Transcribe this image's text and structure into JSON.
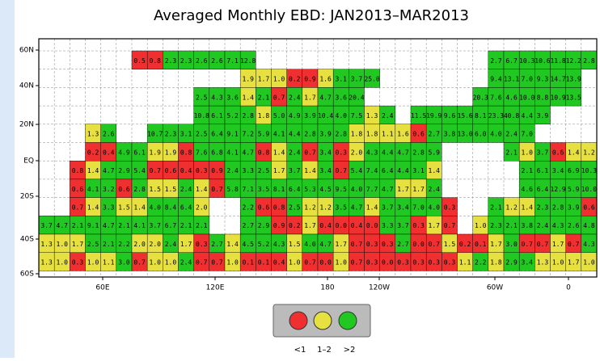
{
  "title": "Averaged Monthly EBD: JAN2013–MAR2013",
  "lat_labels": [
    "60N",
    "40N",
    "20N",
    "EQ",
    "20S",
    "40S",
    "60S"
  ],
  "lon_labels": [
    "60E",
    "120E",
    "180",
    "120W",
    "60W",
    "0"
  ],
  "legend": [
    {
      "label": "<1",
      "color": "#f03030"
    },
    {
      "label": "1–2",
      "color": "#e6e040"
    },
    {
      "label": ">2",
      "color": "#22c822"
    }
  ],
  "grid": {
    "rows": [
      {
        "colors": "......00222222...............2222222",
        "values": [
          null,
          null,
          null,
          null,
          null,
          null,
          "0.5",
          "0.8",
          "2.3",
          "2.3",
          "2.6",
          "2.6",
          "7.1",
          "12.8",
          null,
          null,
          null,
          null,
          null,
          null,
          null,
          null,
          null,
          null,
          null,
          null,
          null,
          null,
          null,
          "2.7",
          "6.7",
          "10.3",
          "10.6",
          "11.8",
          "12.2",
          "2.8"
        ]
      },
      {
        "colors": ".............111001222.......222222.",
        "values": [
          null,
          null,
          null,
          null,
          null,
          null,
          null,
          null,
          null,
          null,
          null,
          null,
          null,
          "1.9",
          "1.7",
          "1.0",
          "0.2",
          "0.9",
          "1.6",
          "3.1",
          "3.7",
          "25.0",
          null,
          null,
          null,
          null,
          null,
          null,
          null,
          "9.4",
          "13.1",
          "7.0",
          "9.3",
          "14.7",
          "13.9",
          null
        ]
      },
      {
        "colors": "..........22212021222.......2222222.",
        "values": [
          null,
          null,
          null,
          null,
          null,
          null,
          null,
          null,
          null,
          null,
          "2.5",
          "4.3",
          "3.6",
          "1.4",
          "2.1",
          "0.7",
          "2.4",
          "1.7",
          "4.7",
          "3.6",
          "20.4",
          null,
          null,
          null,
          null,
          null,
          null,
          null,
          "20.3",
          "7.6",
          "4.6",
          "10.0",
          "8.8",
          "10.9",
          "13.5",
          null
        ]
      },
      {
        "colors": "..........2222122222212.222222222...",
        "values": [
          null,
          null,
          null,
          null,
          null,
          null,
          null,
          null,
          null,
          null,
          "10.8",
          "6.1",
          "5.2",
          "2.8",
          "1.8",
          "5.0",
          "4.9",
          "3.9",
          "10.4",
          "4.0",
          "7.5",
          "1.3",
          "2.4",
          null,
          "11.5",
          "19.9",
          "9.6",
          "15.6",
          "8.1",
          "23.3",
          "40.8",
          "4.4",
          "3.9",
          null,
          null,
          null
        ]
      },
      {
        "colors": "...12..2222222222222111102222222....",
        "values": [
          null,
          null,
          null,
          "1.3",
          "2.6",
          null,
          null,
          "10.7",
          "2.3",
          "3.1",
          "2.5",
          "6.4",
          "9.1",
          "7.2",
          "5.9",
          "4.1",
          "4.4",
          "2.8",
          "3.9",
          "2.8",
          "1.8",
          "1.8",
          "1.1",
          "1.6",
          "0.6",
          "2.7",
          "3.8",
          "13.0",
          "6.0",
          "4.0",
          "2.4",
          "7.0",
          null,
          null,
          null,
          null
        ]
      },
      {
        "colors": "...00221102222012020122222....212011",
        "values": [
          null,
          null,
          null,
          "0.2",
          "0.4",
          "4.9",
          "6.1",
          "1.9",
          "1.9",
          "0.8",
          "7.6",
          "6.8",
          "4.1",
          "4.7",
          "0.8",
          "1.4",
          "2.4",
          "0.7",
          "3.4",
          "0.3",
          "2.0",
          "4.3",
          "4.4",
          "4.7",
          "2.8",
          "5.9",
          null,
          null,
          null,
          null,
          "2.1",
          "1.0",
          "3.7",
          "0.6",
          "1.4",
          "1.2"
        ]
      },
      {
        "colors": "..012220000022212120222221.....22222",
        "values": [
          null,
          null,
          "0.8",
          "1.4",
          "4.7",
          "2.9",
          "5.4",
          "0.7",
          "0.6",
          "0.4",
          "0.3",
          "0.9",
          "2.4",
          "3.3",
          "2.5",
          "1.7",
          "3.7",
          "1.4",
          "3.4",
          "0.7",
          "5.4",
          "7.4",
          "6.4",
          "4.4",
          "3.1",
          "1.4",
          null,
          null,
          null,
          null,
          null,
          "2.1",
          "6.1",
          "3.4",
          "6.9",
          "10.3"
        ]
      },
      {
        "colors": "..022021121022222222222112.....22222",
        "values": [
          null,
          null,
          "0.6",
          "4.1",
          "3.2",
          "0.6",
          "2.8",
          "1.5",
          "1.5",
          "2.4",
          "1.4",
          "0.7",
          "5.8",
          "7.1",
          "3.5",
          "8.1",
          "6.4",
          "5.3",
          "4.5",
          "9.5",
          "4.0",
          "7.7",
          "4.7",
          "1.7",
          "1.7",
          "2.4",
          null,
          null,
          null,
          null,
          null,
          "4.6",
          "6.4",
          "12.9",
          "5.9",
          "10.0"
        ]
      },
      {
        "colors": "..012112221..20021122122220..2112220",
        "values": [
          null,
          null,
          "0.7",
          "1.4",
          "3.3",
          "1.5",
          "1.4",
          "4.0",
          "8.4",
          "6.4",
          "2.0",
          null,
          null,
          "2.2",
          "0.6",
          "0.8",
          "2.5",
          "1.2",
          "1.2",
          "3.5",
          "4.7",
          "1.4",
          "3.7",
          "3.4",
          "7.0",
          "4.0",
          "0.3",
          null,
          null,
          "2.1",
          "1.2",
          "1.4",
          "2.3",
          "2.8",
          "3.9",
          "0.6"
        ]
      },
      {
        "colors": "22222222222..22001000022010.12222222",
        "values": [
          "3.7",
          "4.7",
          "2.1",
          "9.1",
          "4.7",
          "2.1",
          "4.1",
          "3.7",
          "6.7",
          "2.1",
          "2.1",
          null,
          null,
          "2.7",
          "2.9",
          "0.9",
          "0.2",
          "1.7",
          "0.4",
          "0.0",
          "0.4",
          "0.0",
          "3.3",
          "3.7",
          "0.3",
          "1.7",
          "0.7",
          null,
          "1.0",
          "2.3",
          "2.1",
          "3.8",
          "2.4",
          "4.3",
          "2.6",
          "4.8"
        ]
      },
      {
        "colors": "111222112102122212210002001001200102",
        "values": [
          "1.3",
          "1.0",
          "1.7",
          "2.5",
          "2.1",
          "2.2",
          "2.0",
          "2.0",
          "2.4",
          "1.7",
          "0.3",
          "2.7",
          "1.4",
          "4.5",
          "5.2",
          "4.3",
          "1.5",
          "4.0",
          "4.7",
          "1.7",
          "0.7",
          "0.3",
          "0.3",
          "2.7",
          "0.0",
          "0.7",
          "1.5",
          "0.2",
          "0.1",
          "1.7",
          "3.0",
          "0.7",
          "0.7",
          "1.7",
          "0.7",
          "4.3"
        ]
      },
      {
        "colors": "110112011200100010010000000121221111",
        "values": [
          "1.3",
          "1.0",
          "0.3",
          "1.0",
          "1.1",
          "3.0",
          "0.7",
          "1.0",
          "1.0",
          "2.4",
          "0.7",
          "0.7",
          "1.0",
          "0.1",
          "0.1",
          "0.4",
          "1.0",
          "0.7",
          "0.0",
          "1.0",
          "0.7",
          "0.3",
          "0.0",
          "0.3",
          "0.3",
          "0.3",
          "0.3",
          "1.1",
          "2.2",
          "1.8",
          "2.9",
          "3.4",
          "1.3",
          "1.0",
          "1.7",
          "1.0"
        ]
      }
    ]
  }
}
